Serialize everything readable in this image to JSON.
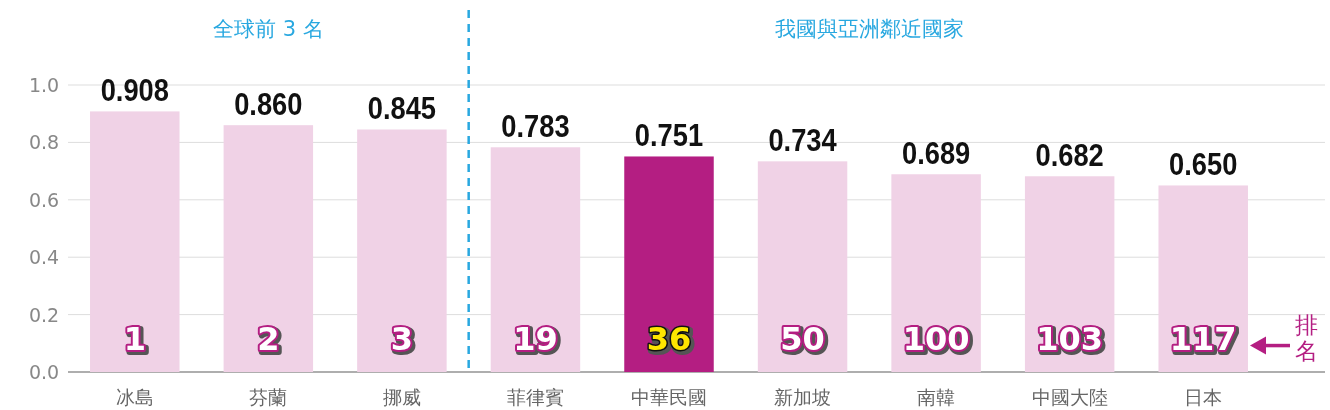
{
  "chart_data": {
    "type": "bar",
    "categories": [
      "冰島",
      "芬蘭",
      "挪威",
      "菲律賓",
      "中華民國",
      "新加坡",
      "南韓",
      "中國大陸",
      "日本"
    ],
    "values": [
      0.908,
      0.86,
      0.845,
      0.783,
      0.751,
      0.734,
      0.689,
      0.682,
      0.65
    ],
    "value_labels": [
      "0.908",
      "0.860",
      "0.845",
      "0.783",
      "0.751",
      "0.734",
      "0.689",
      "0.682",
      "0.650"
    ],
    "colors": [
      "#f0d2e6",
      "#f0d2e6",
      "#f0d2e6",
      "#f0d2e6",
      "#b41e82",
      "#f0d2e6",
      "#f0d2e6",
      "#f0d2e6",
      "#f0d2e6"
    ],
    "ylim": [
      0,
      1
    ],
    "yticks": [
      {
        "value": 0,
        "label": "0.0"
      },
      {
        "value": 0.2,
        "label": "0.2"
      },
      {
        "value": 0.4,
        "label": "0.4"
      },
      {
        "value": 0.6,
        "label": "0.6"
      },
      {
        "value": 0.8,
        "label": "0.8"
      },
      {
        "value": 1,
        "label": "1.0"
      }
    ],
    "grid": "y",
    "annotations": [
      "全球前 3 名",
      "我國與亞洲鄰近國家",
      "1",
      "2",
      "3",
      "19",
      "36",
      "50",
      "100",
      "103",
      "117",
      "排名"
    ]
  }
}
